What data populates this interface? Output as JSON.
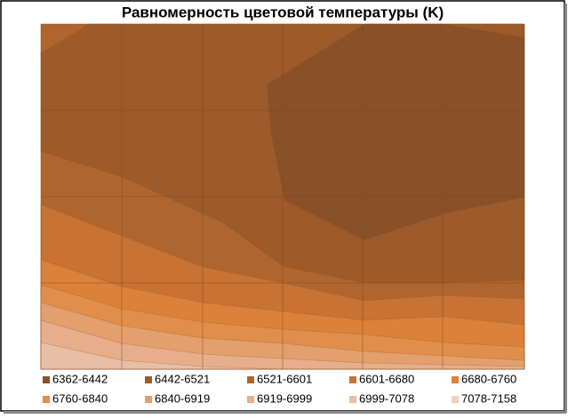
{
  "chart_data": {
    "type": "contour",
    "title": "Равномерность цветовой температуры (K)",
    "grid": true,
    "series": [
      {
        "name": "6362-6442",
        "color": "#8a5027"
      },
      {
        "name": "6442-6521",
        "color": "#9d5a2b"
      },
      {
        "name": "6521-6601",
        "color": "#b1652e"
      },
      {
        "name": "6601-6680",
        "color": "#c87233"
      },
      {
        "name": "6680-6760",
        "color": "#dc8139"
      },
      {
        "name": "6760-6840",
        "color": "#e08e4c"
      },
      {
        "name": "6840-6919",
        "color": "#e39f6c"
      },
      {
        "name": "6919-6999",
        "color": "#e6ae8b"
      },
      {
        "name": "6999-7078",
        "color": "#e9bea6"
      },
      {
        "name": "7078-7158",
        "color": "#efd0c0"
      }
    ]
  }
}
